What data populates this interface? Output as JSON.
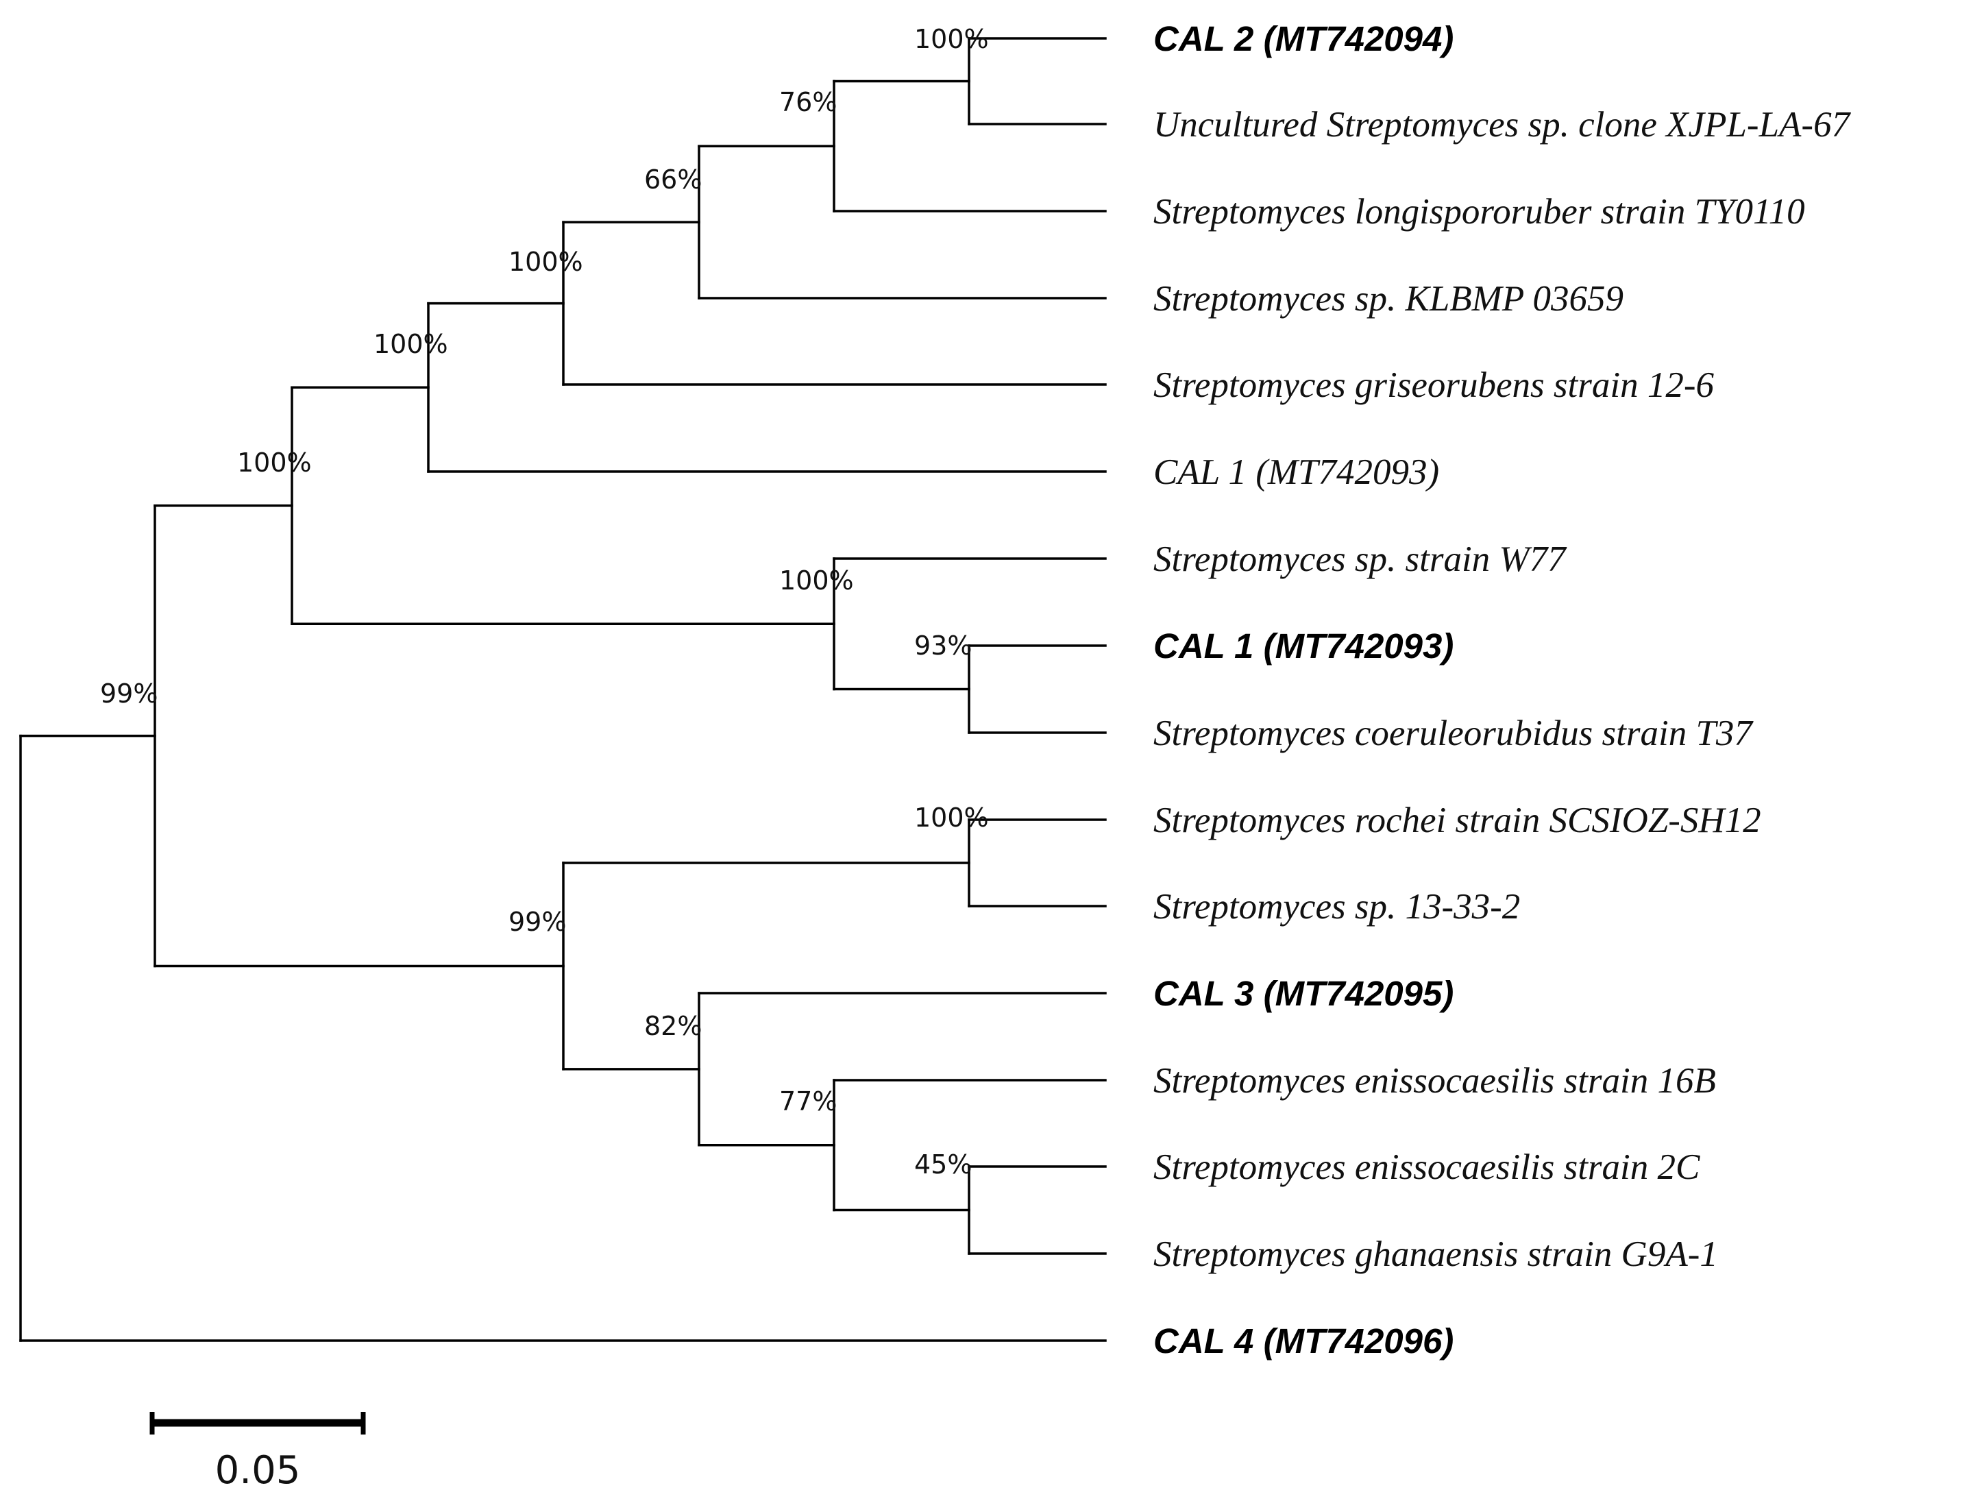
{
  "figure": {
    "type": "phylogenetic tree",
    "scale_bar": {
      "label": "0.05",
      "value": 0.05
    }
  },
  "taxa": [
    {
      "id": "t1",
      "label": "CAL 2 (MT742094)",
      "bold": true
    },
    {
      "id": "t2",
      "label": "Uncultured Streptomyces sp. clone XJPL-LA-67",
      "bold": false
    },
    {
      "id": "t3",
      "label": "Streptomyces longispororuber strain TY0110",
      "bold": false
    },
    {
      "id": "t4",
      "label": "Streptomyces sp. KLBMP 03659",
      "bold": false
    },
    {
      "id": "t5",
      "label": "Streptomyces griseorubens strain 12-6",
      "bold": false
    },
    {
      "id": "t6",
      "label": "CAL 1 (MT742093)",
      "bold": false
    },
    {
      "id": "t7",
      "label": "Streptomyces sp. strain W77",
      "bold": false
    },
    {
      "id": "t8",
      "label": "CAL 1 (MT742093)",
      "bold": true
    },
    {
      "id": "t9",
      "label": "Streptomyces coeruleorubidus strain T37",
      "bold": false
    },
    {
      "id": "t10",
      "label": "Streptomyces rochei strain SCSIOZ-SH12",
      "bold": false
    },
    {
      "id": "t11",
      "label": "Streptomyces sp. 13-33-2",
      "bold": false
    },
    {
      "id": "t12",
      "label": "CAL 3 (MT742095)",
      "bold": true
    },
    {
      "id": "t13",
      "label": "Streptomyces enissocaesilis strain 16B",
      "bold": false
    },
    {
      "id": "t14",
      "label": "Streptomyces enissocaesilis strain 2C",
      "bold": false
    },
    {
      "id": "t15",
      "label": "Streptomyces ghanaensis strain G9A-1",
      "bold": false
    },
    {
      "id": "t16",
      "label": "CAL 4 (MT742096)",
      "bold": true
    }
  ],
  "nodes": [
    {
      "id": "n_root",
      "children": [
        "n_main",
        "t16"
      ]
    },
    {
      "id": "n_main",
      "support": "99%",
      "children": [
        "n_upper",
        "n_lower"
      ]
    },
    {
      "id": "n_upper",
      "support": "100%",
      "children": [
        "n_a",
        "n_w77"
      ]
    },
    {
      "id": "n_a",
      "support": "100%",
      "children": [
        "n_b",
        "t6"
      ]
    },
    {
      "id": "n_b",
      "support": "100%",
      "children": [
        "n_c",
        "t5"
      ]
    },
    {
      "id": "n_c",
      "support": "66%",
      "children": [
        "n_d",
        "t4"
      ]
    },
    {
      "id": "n_d",
      "support": "76%",
      "children": [
        "n_e",
        "t3"
      ]
    },
    {
      "id": "n_e",
      "support": "100%",
      "children": [
        "t1",
        "t2"
      ]
    },
    {
      "id": "n_w77",
      "support": "100%",
      "children": [
        "t7",
        "n_cal1"
      ]
    },
    {
      "id": "n_cal1",
      "support": "93%",
      "children": [
        "t8",
        "t9"
      ]
    },
    {
      "id": "n_lower",
      "support": "99%",
      "children": [
        "n_rochei",
        "n_cal3"
      ]
    },
    {
      "id": "n_rochei",
      "support": "100%",
      "children": [
        "t10",
        "t11"
      ]
    },
    {
      "id": "n_cal3",
      "support": "82%",
      "children": [
        "t12",
        "n_eniss"
      ]
    },
    {
      "id": "n_eniss",
      "support": "77%",
      "children": [
        "t13",
        "n_2c"
      ]
    },
    {
      "id": "n_2c",
      "support": "45%",
      "children": [
        "t14",
        "t15"
      ]
    }
  ]
}
